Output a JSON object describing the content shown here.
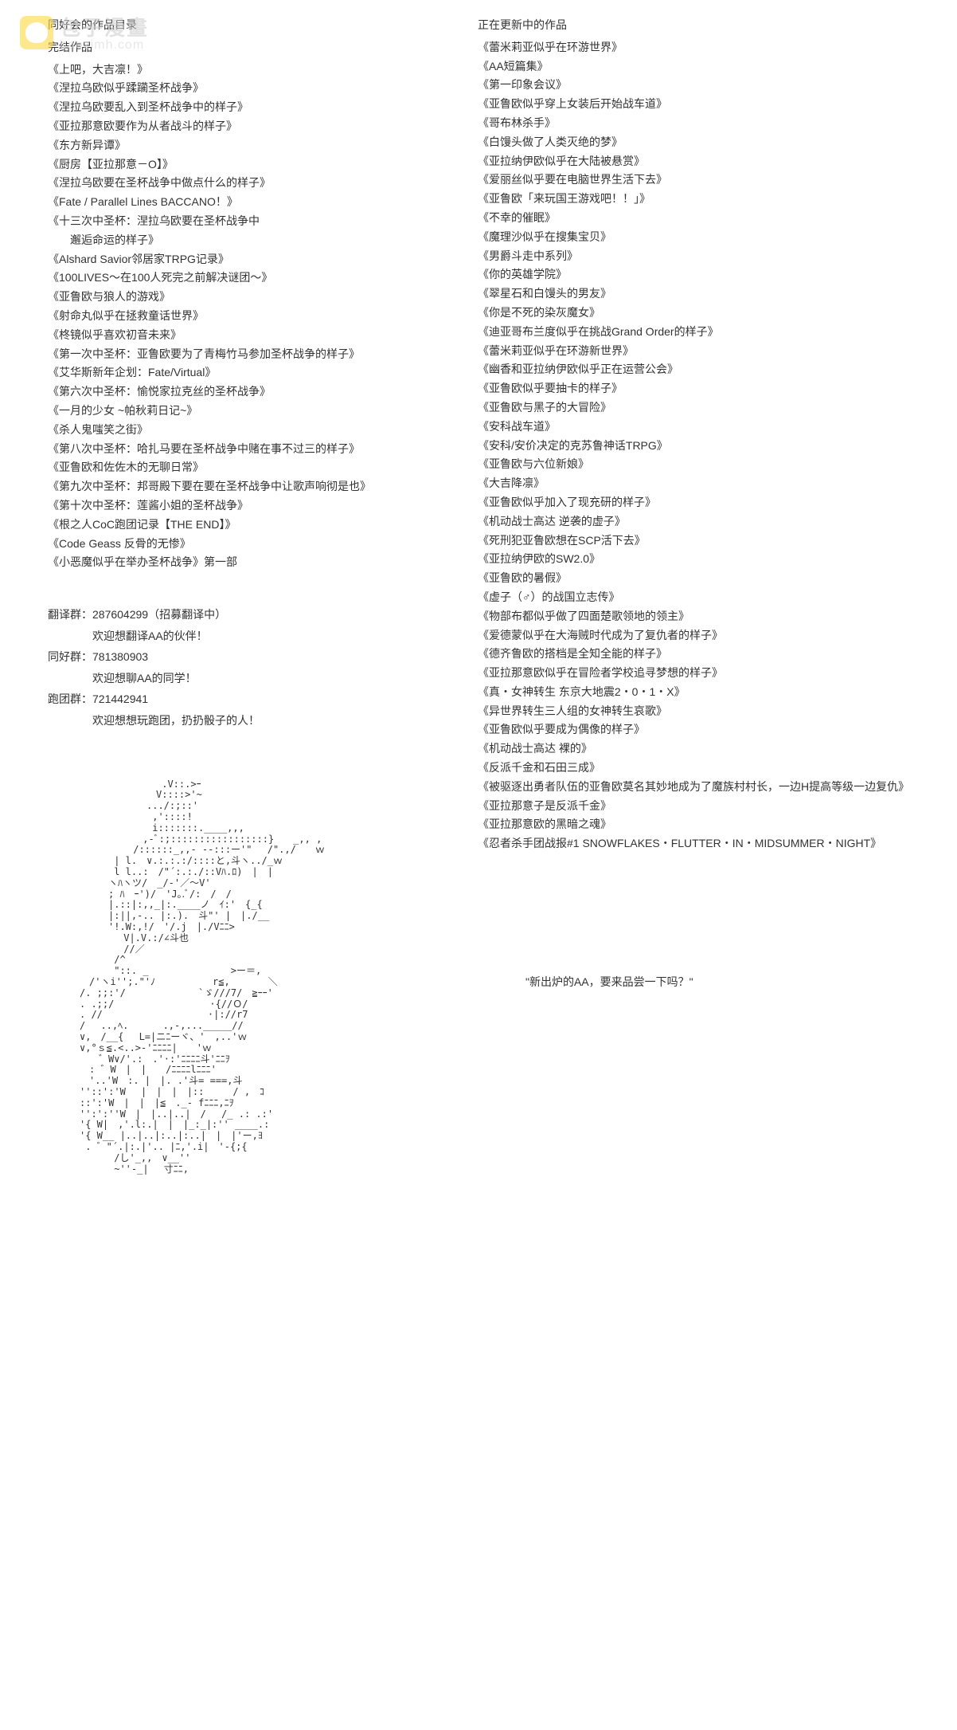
{
  "watermark": {
    "main": "包子漫畫",
    "sub": "baozimh.com"
  },
  "left": {
    "title": "同好会的作品目录",
    "subtitle": "完结作品",
    "items": [
      "《上吧，大吉凛！》",
      "《涅拉乌欧似乎蹂躏圣杯战争》",
      "《涅拉乌欧要乱入到圣杯战争中的样子》",
      "《亚拉那意欧要作为从者战斗的样子》",
      "《东方新异谭》",
      "《厨房【亚拉那意－O】》",
      "《涅拉乌欧要在圣杯战争中做点什么的样子》",
      "《Fate / Parallel Lines BACCANO！》",
      "《十三次中圣杯：涅拉乌欧要在圣杯战争中\n　　邂逅命运的样子》",
      "《Alshard Savior邻居家TRPG记录》",
      "《100LIVES～在100人死完之前解决谜团～》",
      "《亚鲁欧与狼人的游戏》",
      "《射命丸似乎在拯救童话世界》",
      "《柊镜似乎喜欢初音未来》",
      "《第一次中圣杯：亚鲁欧要为了青梅竹马参加圣杯战争的样子》",
      "《艾华斯新年企划：Fate/Virtual》",
      "《第六次中圣杯：愉悦家拉克丝的圣杯战争》",
      "《一月的少女 ~帕秋莉日记~》",
      "《杀人鬼嗤笑之街》",
      "《第八次中圣杯：哈扎马要在圣杯战争中赌在事不过三的样子》",
      "《亚鲁欧和佐佐木的无聊日常》",
      "《第九次中圣杯：邦哥殿下要在要在圣杯战争中让歌声响彻是也》",
      "《第十次中圣杯：莲酱小姐的圣杯战争》",
      "《根之人CoC跑团记录【THE END】》",
      "《Code Geass 反骨的无惨》",
      "《小恶魔似乎在举办圣杯战争》第一部"
    ],
    "groups": [
      {
        "label": "翻译群：",
        "value": "287604299（招募翻译中）",
        "desc": "欢迎想翻译AA的伙伴！"
      },
      {
        "label": "同好群：",
        "value": "781380903",
        "desc": "欢迎想聊AA的同学！"
      },
      {
        "label": "跑团群：",
        "value": "721442941",
        "desc": "欢迎想想玩跑团，扔扔骰子的人！"
      }
    ]
  },
  "right": {
    "title": "正在更新中的作品",
    "items": [
      "《蕾米莉亚似乎在环游世界》",
      "《AA短篇集》",
      "《第一印象会议》",
      "《亚鲁欧似乎穿上女装后开始战车道》",
      "《哥布林杀手》",
      "《白馒头做了人类灭绝的梦》",
      "《亚拉纳伊欧似乎在大陆被悬赏》",
      "《爱丽丝似乎要在电脑世界生活下去》",
      "《亚鲁欧「来玩国王游戏吧！！」》",
      "《不幸的催眠》",
      "《魔理沙似乎在搜集宝贝》",
      "《男爵斗走中系列》",
      "《你的英雄学院》",
      "《翠星石和白馒头的男友》",
      "《你是不死的染灰魔女》",
      "《迪亚哥布兰度似乎在挑战Grand Order的样子》",
      "《蕾米莉亚似乎在环游新世界》",
      "《幽香和亚拉纳伊欧似乎正在运营公会》",
      "《亚鲁欧似乎要抽卡的样子》",
      "《亚鲁欧与黑子的大冒险》",
      "《安科战车道》",
      "《安科/安价决定的克苏鲁神话TRPG》",
      "《亚鲁欧与六位新娘》",
      "《大吉降凛》",
      "《亚鲁欧似乎加入了现充研的样子》",
      "《机动战士高达 逆袭的虚子》",
      "《死刑犯亚鲁欧想在SCP活下去》",
      "《亚拉纳伊欧的SW2.0》",
      "《亚鲁欧的暑假》",
      "《虚子（♂）的战国立志传》",
      "《物部布都似乎做了四面楚歌领地的领主》",
      "《爱德蒙似乎在大海贼时代成为了复仇者的样子》",
      "《德齐鲁欧的搭档是全知全能的样子》",
      "《亚拉那意欧似乎在冒险者学校追寻梦想的样子》",
      "《真・女神转生 东京大地震2・0・1・X》",
      "《异世界转生三人组的女神转生哀歌》",
      "《亚鲁欧似乎要成为偶像的样子》",
      "《机动战士高达 裸的》",
      "《反派千金和石田三成》",
      "《被驱逐出勇者队伍的亚鲁欧莫名其妙地成为了魔族村村长，一边H提高等级一边复仇》",
      "《亚拉那意子是反派千金》",
      "《亚拉那意欧的黑暗之魂》",
      "《忍者杀手团战报#1 SNOWFLAKES・FLUTTER・IN・MIDSUMMER・NIGHT》"
    ],
    "quote": "\"新出炉的AA，要来品尝一下吗？\""
  },
  "ascii": "　　　　　　　　 .V::.>ｰ　　　　　　　　　\n　　　　　　　　V::::>'~\n　　　　　　　.../:;::'\n　　　　　　　 ,'::::!\n　　　　　　　 i:::::::.____,,,\n　　　　　　 ,-ﾞ:;:::::::::::::::::}　　_,, ,\n　　　　　 /::::::_,,- --:::ー'\"　 /\".,/　　ｗ\n　　　 | l.　∨.:.:.:/::::と,斗ヽ../_ｗ\n　　　 l l..:　/\"´:.:./::Vﾊ.ﾛ)　|　|　\n　　　ヽﾊヽツ/　_/-'／～V'\n　　　; ﾊ　ｰ')/　'J｡.ﾞ/:　/　/\n　　　|.::|:,,_|:.____ノ　ｲ:'　{_{\n　　　|:||,-.. |:.).　斗\"' |　|./__\n　　　'!.W:,!/　'/.j　|./Vﾆﾆ>\n　　　　 V|.V.:/∠斗也\n　　　　 //／\n　　　 /^\n　　　 \"::. _　　　　　　　　 >ー＝,\n　/'ヽi'';.\"'ﾉ　　　　　　r≦,　　　　＼\n/. ;;:'/　　　　　　　 `ゞ///7/　≧ｰｰ'　\n. .;;/　　　　　　　　　　·{//Ｏ/\n. //　　　　　　　　　　　·|://r7\n/　 ..,ﾍ.　　　 .,-,..._____//\n∨,　/__{　 L=|ニﾆーヾ、'　,..'ｗ\n∨,°ｓ≦.<..>-'ﾆﾆﾆﾆ|　　'ｗ\n　　゛W∨/'.:　.'·:'ﾆﾆﾆﾆ斗'ﾆﾆｦ\n　: ゛W　|　|　　/ﾆﾆﾆﾆlﾆﾆﾆ'\n　'..'W　:. |　|. .'斗= ===,斗\n''::':'W　 |　|　|　|::　　　/ ,　ｺ\n::':'W　|　|　|≦　._- fﾆﾆﾆ,ﾆｦ\n'':':''W　|　|..|..|　/　 /_ .: .:'\n'{ W|　,'.l:.|　|　|_:_|:'' ____.:\n'{ W__ |..|..|:..|:..|　|　|'ー,ﾖ\n . ゛\"´.|:.|'.. |ﾆ,'.i|　'-{;{\n　　　 /し'_,,　∨__''\n　　　 ~''-_|　 寸ﾆﾆ,\n"
}
